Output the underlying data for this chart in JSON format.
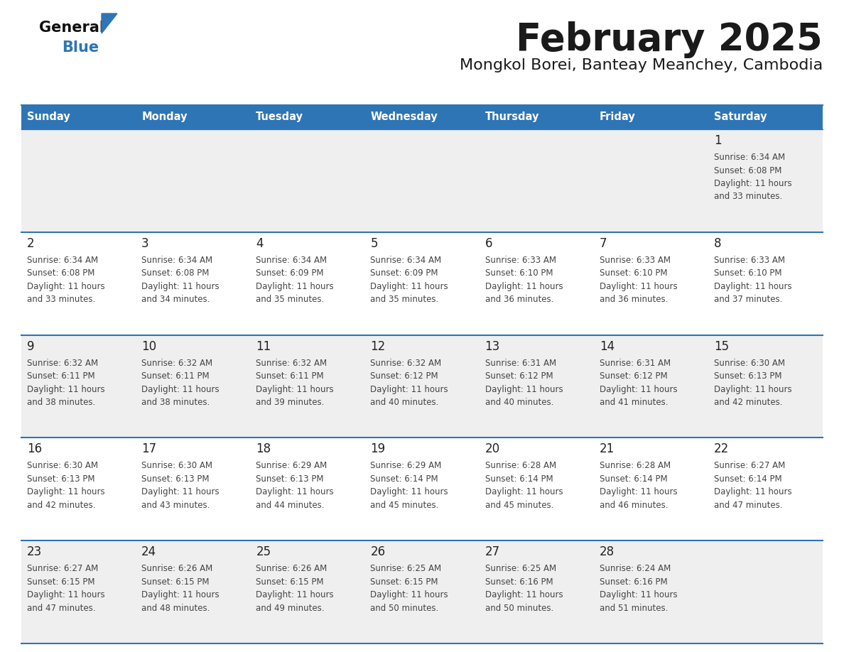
{
  "title": "February 2025",
  "subtitle": "Mongkol Borei, Banteay Meanchey, Cambodia",
  "days_of_week": [
    "Sunday",
    "Monday",
    "Tuesday",
    "Wednesday",
    "Thursday",
    "Friday",
    "Saturday"
  ],
  "header_bg": "#2E75B6",
  "header_text": "#FFFFFF",
  "cell_bg_white": "#FFFFFF",
  "cell_bg_gray": "#EFEFEF",
  "cell_border": "#2E75B6",
  "day_num_color": "#333333",
  "text_color": "#444444",
  "logo_general_color": "#111111",
  "logo_blue_color": "#2E75B6",
  "calendar_data": [
    [
      null,
      null,
      null,
      null,
      null,
      null,
      {
        "day": 1,
        "sunrise": "6:34 AM",
        "sunset": "6:08 PM",
        "daylight": "11 hours and 33 minutes"
      }
    ],
    [
      {
        "day": 2,
        "sunrise": "6:34 AM",
        "sunset": "6:08 PM",
        "daylight": "11 hours and 33 minutes"
      },
      {
        "day": 3,
        "sunrise": "6:34 AM",
        "sunset": "6:08 PM",
        "daylight": "11 hours and 34 minutes"
      },
      {
        "day": 4,
        "sunrise": "6:34 AM",
        "sunset": "6:09 PM",
        "daylight": "11 hours and 35 minutes"
      },
      {
        "day": 5,
        "sunrise": "6:34 AM",
        "sunset": "6:09 PM",
        "daylight": "11 hours and 35 minutes"
      },
      {
        "day": 6,
        "sunrise": "6:33 AM",
        "sunset": "6:10 PM",
        "daylight": "11 hours and 36 minutes"
      },
      {
        "day": 7,
        "sunrise": "6:33 AM",
        "sunset": "6:10 PM",
        "daylight": "11 hours and 36 minutes"
      },
      {
        "day": 8,
        "sunrise": "6:33 AM",
        "sunset": "6:10 PM",
        "daylight": "11 hours and 37 minutes"
      }
    ],
    [
      {
        "day": 9,
        "sunrise": "6:32 AM",
        "sunset": "6:11 PM",
        "daylight": "11 hours and 38 minutes"
      },
      {
        "day": 10,
        "sunrise": "6:32 AM",
        "sunset": "6:11 PM",
        "daylight": "11 hours and 38 minutes"
      },
      {
        "day": 11,
        "sunrise": "6:32 AM",
        "sunset": "6:11 PM",
        "daylight": "11 hours and 39 minutes"
      },
      {
        "day": 12,
        "sunrise": "6:32 AM",
        "sunset": "6:12 PM",
        "daylight": "11 hours and 40 minutes"
      },
      {
        "day": 13,
        "sunrise": "6:31 AM",
        "sunset": "6:12 PM",
        "daylight": "11 hours and 40 minutes"
      },
      {
        "day": 14,
        "sunrise": "6:31 AM",
        "sunset": "6:12 PM",
        "daylight": "11 hours and 41 minutes"
      },
      {
        "day": 15,
        "sunrise": "6:30 AM",
        "sunset": "6:13 PM",
        "daylight": "11 hours and 42 minutes"
      }
    ],
    [
      {
        "day": 16,
        "sunrise": "6:30 AM",
        "sunset": "6:13 PM",
        "daylight": "11 hours and 42 minutes"
      },
      {
        "day": 17,
        "sunrise": "6:30 AM",
        "sunset": "6:13 PM",
        "daylight": "11 hours and 43 minutes"
      },
      {
        "day": 18,
        "sunrise": "6:29 AM",
        "sunset": "6:13 PM",
        "daylight": "11 hours and 44 minutes"
      },
      {
        "day": 19,
        "sunrise": "6:29 AM",
        "sunset": "6:14 PM",
        "daylight": "11 hours and 45 minutes"
      },
      {
        "day": 20,
        "sunrise": "6:28 AM",
        "sunset": "6:14 PM",
        "daylight": "11 hours and 45 minutes"
      },
      {
        "day": 21,
        "sunrise": "6:28 AM",
        "sunset": "6:14 PM",
        "daylight": "11 hours and 46 minutes"
      },
      {
        "day": 22,
        "sunrise": "6:27 AM",
        "sunset": "6:14 PM",
        "daylight": "11 hours and 47 minutes"
      }
    ],
    [
      {
        "day": 23,
        "sunrise": "6:27 AM",
        "sunset": "6:15 PM",
        "daylight": "11 hours and 47 minutes"
      },
      {
        "day": 24,
        "sunrise": "6:26 AM",
        "sunset": "6:15 PM",
        "daylight": "11 hours and 48 minutes"
      },
      {
        "day": 25,
        "sunrise": "6:26 AM",
        "sunset": "6:15 PM",
        "daylight": "11 hours and 49 minutes"
      },
      {
        "day": 26,
        "sunrise": "6:25 AM",
        "sunset": "6:15 PM",
        "daylight": "11 hours and 50 minutes"
      },
      {
        "day": 27,
        "sunrise": "6:25 AM",
        "sunset": "6:16 PM",
        "daylight": "11 hours and 50 minutes"
      },
      {
        "day": 28,
        "sunrise": "6:24 AM",
        "sunset": "6:16 PM",
        "daylight": "11 hours and 51 minutes"
      },
      null
    ]
  ]
}
